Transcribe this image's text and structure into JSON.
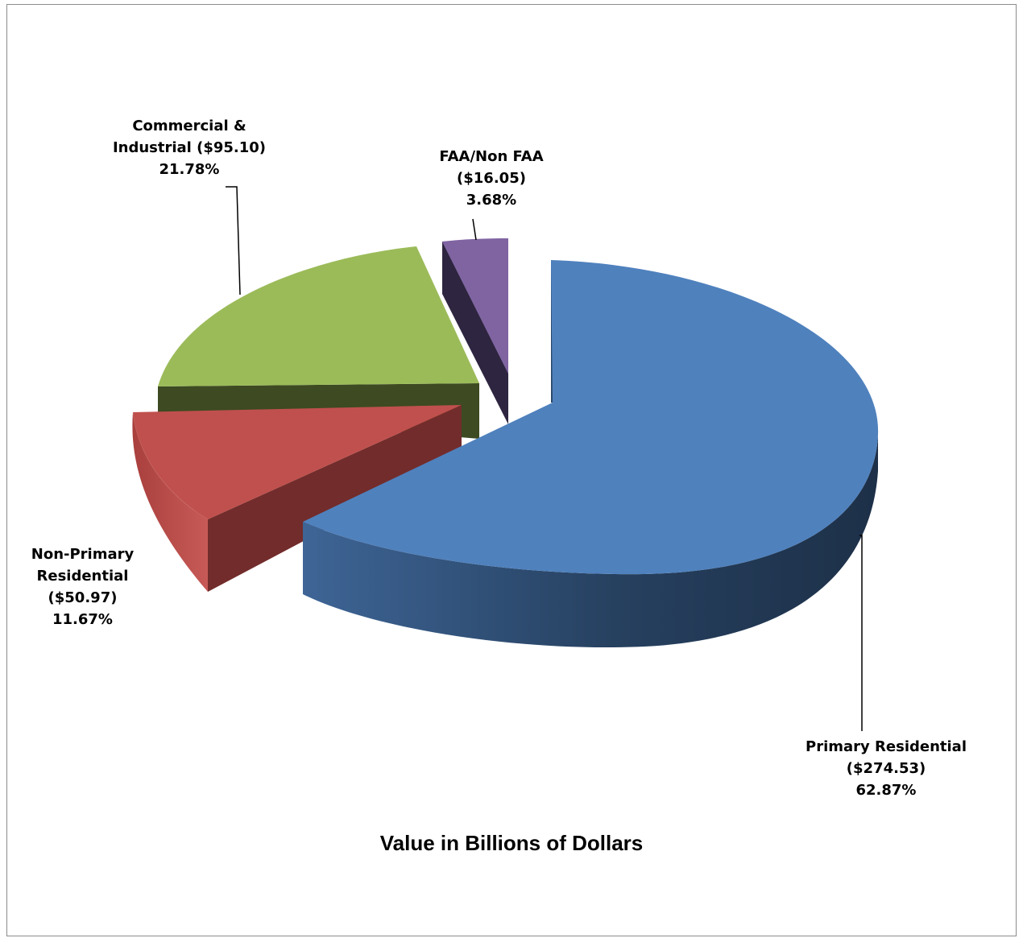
{
  "chart_data": {
    "type": "pie",
    "title": "Value in Billions of Dollars",
    "unit": "Billions of Dollars",
    "slices": [
      {
        "name": "Primary Residential",
        "value": 274.53,
        "percent": 62.87,
        "value_label": "($274.53)",
        "percent_label": "62.87%",
        "color": "#4f81bd",
        "side_color": "#1f3551"
      },
      {
        "name": "Non-Primary Residential",
        "value": 50.97,
        "percent": 11.67,
        "value_label": "($50.97)",
        "percent_label": "11.67%",
        "color": "#c0504d",
        "side_color": "#722c2b"
      },
      {
        "name": "Commercial & Industrial",
        "value": 95.1,
        "percent": 21.78,
        "value_label": "($95.10)",
        "percent_label": "21.78%",
        "color": "#9bbb59",
        "side_color": "#3d4a22"
      },
      {
        "name": "FAA/Non FAA",
        "value": 16.05,
        "percent": 3.68,
        "value_label": "($16.05)",
        "percent_label": "3.68%",
        "color": "#8064a2",
        "side_color": "#2e2540"
      }
    ]
  },
  "labels": {
    "primary": {
      "line1": "Primary Residential",
      "line2": "($274.53)",
      "line3": "62.87%"
    },
    "nonprimary": {
      "line1": "Non-Primary",
      "line2": "Residential",
      "line3": "($50.97)",
      "line4": "11.67%"
    },
    "commercial": {
      "line1": "Commercial &",
      "line2": "Industrial ($95.10)",
      "line3": "21.78%"
    },
    "faa": {
      "line1": "FAA/Non FAA",
      "line2": "($16.05)",
      "line3": "3.68%"
    }
  }
}
